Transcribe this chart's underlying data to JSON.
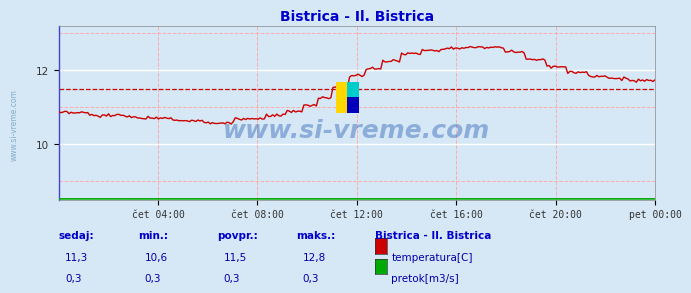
{
  "title": "Bistrica - Il. Bistrica",
  "title_color": "#0000cc",
  "bg_color": "#d6e8f5",
  "plot_bg_color": "#d6e8f5",
  "grid_color_white": "#ffffff",
  "grid_color_pink": "#ffaaaa",
  "temp_color": "#cc0000",
  "flow_color": "#00aa00",
  "avg_line_color": "#cc0000",
  "xlim": [
    0,
    288
  ],
  "ylim": [
    8.5,
    13.2
  ],
  "yticks": [
    10,
    12
  ],
  "xtick_labels": [
    "čet 04:00",
    "čet 08:00",
    "čet 12:00",
    "čet 16:00",
    "čet 20:00",
    "pet 00:00"
  ],
  "xtick_positions": [
    48,
    96,
    144,
    192,
    240,
    288
  ],
  "watermark": "www.si-vreme.com",
  "watermark_color": "#3366bb",
  "watermark_alpha": 0.45,
  "footer_label_color": "#0000cc",
  "footer_value_color": "#0000aa",
  "sedaj_temp": "11,3",
  "min_temp": "10,6",
  "povpr_temp": "11,5",
  "maks_temp": "12,8",
  "sedaj_flow": "0,3",
  "min_flow": "0,3",
  "povpr_flow": "0,3",
  "maks_flow": "0,3",
  "legend_title": "Bistrica - Il. Bistrica",
  "legend_items": [
    "temperatura[C]",
    "pretok[m3/s]"
  ],
  "avg_temp": 11.5
}
